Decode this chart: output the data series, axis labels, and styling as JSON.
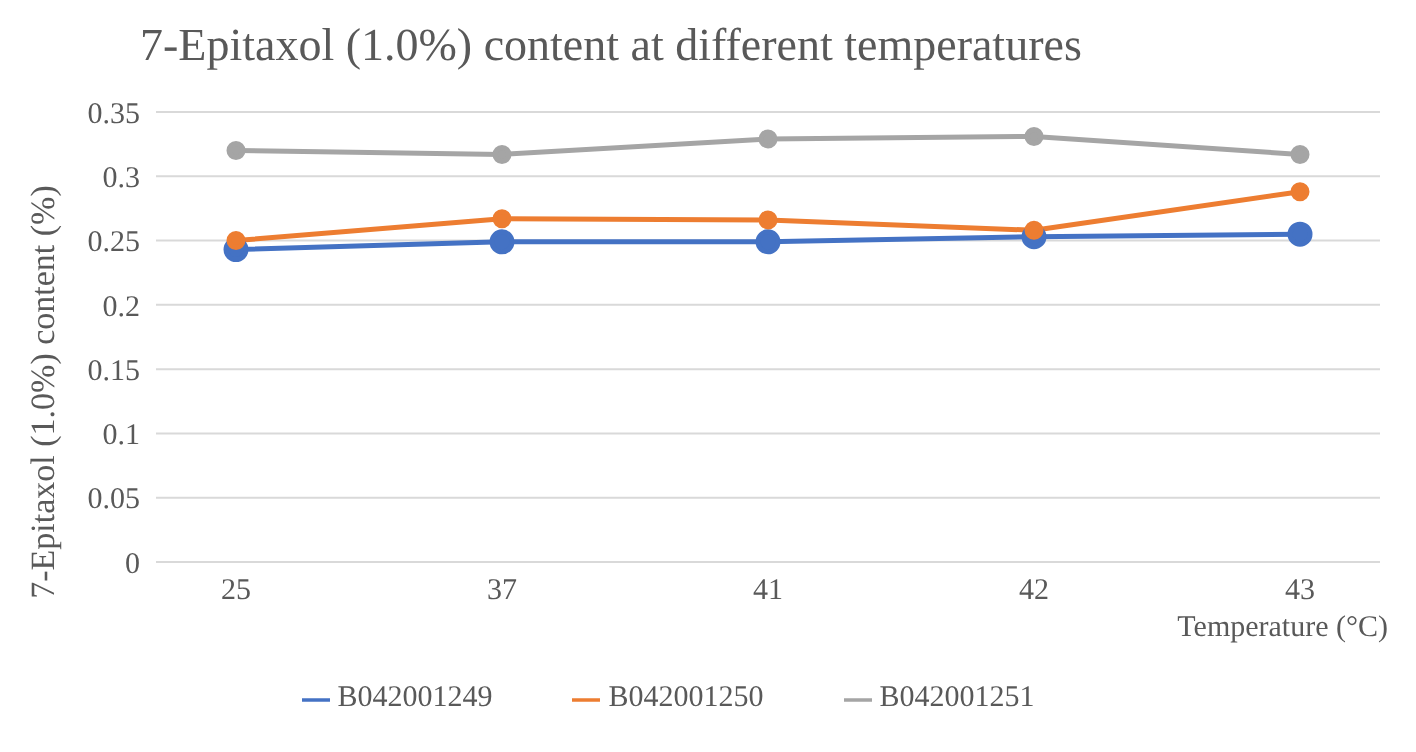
{
  "chart_data": {
    "type": "line",
    "title": "7-Epitaxol  (1.0%) content at different temperatures",
    "xlabel": "Temperature (°C)",
    "ylabel": "7-Epitaxol  (1.0%) content (%)",
    "categories": [
      "25",
      "37",
      "41",
      "42",
      "43"
    ],
    "series": [
      {
        "name": "B042001249",
        "color": "#4472c4",
        "values": [
          0.243,
          0.249,
          0.249,
          0.253,
          0.255
        ]
      },
      {
        "name": "B042001250",
        "color": "#ed7d31",
        "values": [
          0.25,
          0.267,
          0.266,
          0.258,
          0.288
        ]
      },
      {
        "name": "B042001251",
        "color": "#a5a5a5",
        "values": [
          0.32,
          0.317,
          0.329,
          0.331,
          0.317
        ]
      }
    ],
    "ylim": [
      0,
      0.35
    ],
    "yticks": [
      0,
      0.05,
      0.1,
      0.15,
      0.2,
      0.25,
      0.3,
      0.35
    ],
    "grid": "y",
    "legend": "bottom",
    "marker": "circle",
    "line_style": "solid"
  }
}
